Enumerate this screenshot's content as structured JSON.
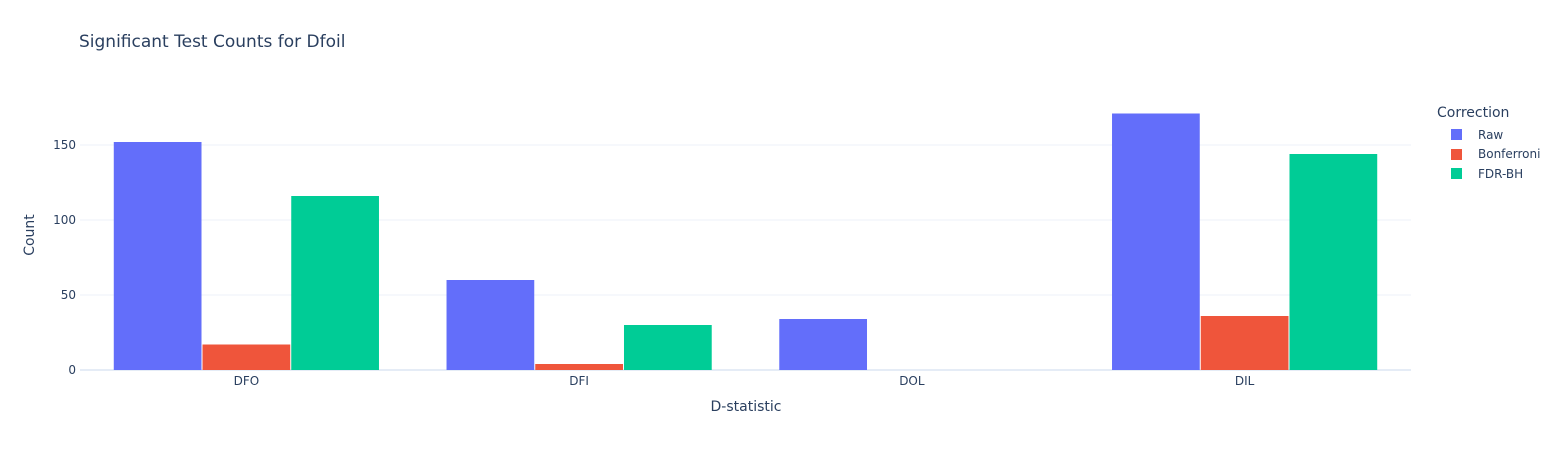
{
  "chart_data": {
    "type": "bar",
    "title": "Significant Test Counts for Dfoil",
    "xlabel": "D-statistic",
    "ylabel": "Count",
    "categories": [
      "DFO",
      "DFI",
      "DOL",
      "DIL"
    ],
    "series": [
      {
        "name": "Raw",
        "color": "#636efa",
        "values": [
          152,
          60,
          34,
          171
        ]
      },
      {
        "name": "Bonferroni",
        "color": "#ef553b",
        "values": [
          17,
          4,
          0,
          36
        ]
      },
      {
        "name": "FDR-BH",
        "color": "#00cc96",
        "values": [
          116,
          30,
          0,
          144
        ]
      }
    ],
    "ylim": [
      0,
      180
    ],
    "yticks": [
      0,
      50,
      100,
      150
    ],
    "grid": true,
    "legend": {
      "title": "Correction",
      "placement": "top-right"
    }
  }
}
